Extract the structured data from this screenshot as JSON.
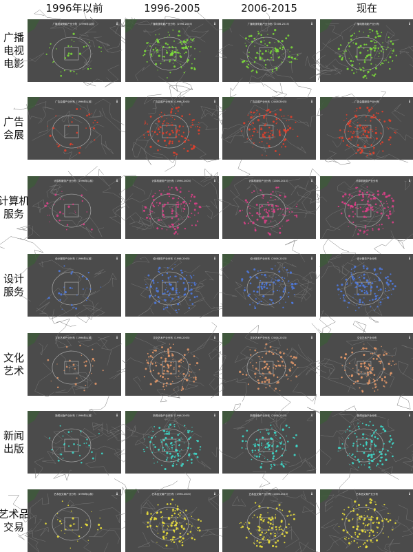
{
  "columns": [
    "1996年以前",
    "1996-2005",
    "2006-2015",
    "现在"
  ],
  "rows": [
    {
      "label_lines": [
        "广播",
        "电视",
        "电影"
      ],
      "color": "#7ee03a",
      "tile_titles": [
        "广播电视电影产业分布（1996年以前）",
        "广播电视电影产业分布（1996-2005）",
        "广播电视电影产业分布（2006-2015）",
        "广播电视电影产业分布"
      ]
    },
    {
      "label_lines": [
        "广告",
        "会展"
      ],
      "color": "#e8402a",
      "tile_titles": [
        "广告会展产业分布（1996年以前）",
        "广告会展产业分布（1996-2005）",
        "广告会展产业分布（2006-2015）",
        "广告会展服务产业分布"
      ]
    },
    {
      "label_lines": [
        "计算机",
        "服务"
      ],
      "color": "#e0408a",
      "tile_titles": [
        "计算机服务产业分布（1996年以前）",
        "计算机服务产业分布（1996-2005）",
        "计算机服务产业分布（2006-2015）",
        "计算机服务产业分布"
      ]
    },
    {
      "label_lines": [
        "设计",
        "服务"
      ],
      "color": "#4f7de8",
      "tile_titles": [
        "设计服务产业分布（1996年以前）",
        "设计服务产业分布（1996-2005）",
        "设计服务产业分布（2006-2015）",
        "设计服务产业分布"
      ]
    },
    {
      "label_lines": [
        "文化",
        "艺术"
      ],
      "color": "#e89a6a",
      "tile_titles": [
        "文化艺术产业分布（1996年以前）",
        "文化艺术产业分布（1996-2005）",
        "文化艺术产业分布（2006-2015）",
        "文化艺术产业分布"
      ]
    },
    {
      "label_lines": [
        "新闻",
        "出版"
      ],
      "color": "#3ee0d0",
      "tile_titles": [
        "新闻出版产业分布（1996年以前）",
        "新闻出版产业分布（1996-2005）",
        "新闻出版产业分布（2006-2015）",
        "新闻出版产业分布"
      ]
    },
    {
      "label_lines": [
        "艺术品",
        "交易"
      ],
      "color": "#f2e63a",
      "tile_titles": [
        "艺术品交易产业分布（1996年以前）",
        "艺术品交易产业分布（1996-2005）",
        "艺术品交易产业分布（2006-2015）",
        "艺术品交易产业分布"
      ]
    }
  ]
}
